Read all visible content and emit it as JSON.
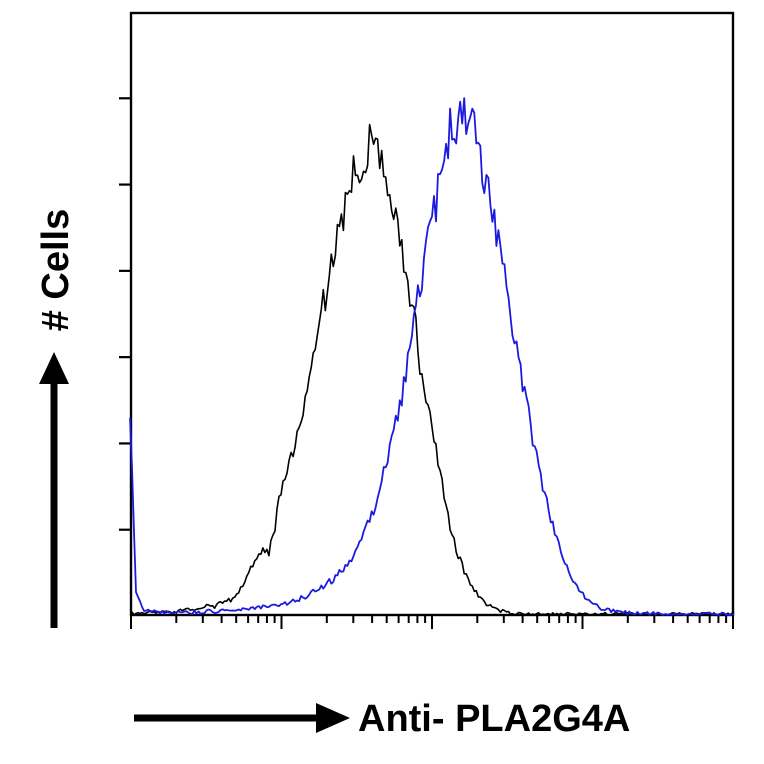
{
  "colors": {
    "background": "#ffffff",
    "axis": "#000000",
    "black_curve": "#000000",
    "blue_curve": "#1b1be0"
  },
  "chart_data": {
    "type": "line",
    "subtype": "flow-cytometry-histogram-overlay",
    "title": "",
    "xlabel": "Anti- PLA2G4A",
    "ylabel": "# Cells",
    "grid": false,
    "legend": "none",
    "x_axis": {
      "scale": "log",
      "decades": 4,
      "tick_labels": []
    },
    "y_axis": {
      "tick_count": 6,
      "tick_labels": []
    },
    "x_range_normalized": [
      0,
      1
    ],
    "y_range_normalized": [
      0,
      1
    ],
    "series": [
      {
        "name": "black",
        "color": "#000000",
        "stroke_width": 1.6,
        "jitter_seed": 1.7,
        "x_step": 0.01,
        "values": [
          0.004,
          0.005,
          0.004,
          0.005,
          0.006,
          0.005,
          0.007,
          0.006,
          0.008,
          0.009,
          0.012,
          0.01,
          0.014,
          0.017,
          0.015,
          0.022,
          0.028,
          0.026,
          0.04,
          0.052,
          0.08,
          0.095,
          0.115,
          0.105,
          0.15,
          0.21,
          0.235,
          0.27,
          0.33,
          0.355,
          0.43,
          0.47,
          0.515,
          0.545,
          0.615,
          0.66,
          0.7,
          0.745,
          0.715,
          0.775,
          0.8,
          0.765,
          0.74,
          0.7,
          0.66,
          0.615,
          0.55,
          0.495,
          0.42,
          0.36,
          0.3,
          0.255,
          0.2,
          0.15,
          0.11,
          0.082,
          0.06,
          0.044,
          0.03,
          0.02,
          0.014,
          0.01,
          0.007,
          0.005,
          0.004,
          0.004,
          0.003,
          0.003,
          0.003,
          0.003,
          0.003,
          0.003,
          0.003,
          0.003,
          0.003,
          0.003,
          0.003,
          0.003,
          0.003,
          0.003,
          0.003,
          0.003,
          0.003,
          0.003,
          0.003,
          0.003,
          0.003,
          0.003,
          0.003,
          0.003,
          0.003,
          0.003,
          0.003,
          0.003,
          0.003,
          0.003,
          0.003,
          0.003,
          0.003,
          0.003,
          0.003
        ]
      },
      {
        "name": "blue",
        "color": "#1b1be0",
        "stroke_width": 1.8,
        "jitter_seed": 9.3,
        "x_step": 0.01,
        "values": [
          0.34,
          0.04,
          0.012,
          0.008,
          0.007,
          0.006,
          0.006,
          0.005,
          0.006,
          0.005,
          0.006,
          0.007,
          0.006,
          0.008,
          0.007,
          0.009,
          0.008,
          0.01,
          0.01,
          0.012,
          0.012,
          0.014,
          0.015,
          0.016,
          0.018,
          0.02,
          0.022,
          0.025,
          0.028,
          0.032,
          0.038,
          0.042,
          0.05,
          0.056,
          0.064,
          0.075,
          0.088,
          0.1,
          0.12,
          0.14,
          0.168,
          0.2,
          0.238,
          0.272,
          0.32,
          0.368,
          0.42,
          0.478,
          0.54,
          0.6,
          0.655,
          0.7,
          0.76,
          0.8,
          0.778,
          0.84,
          0.82,
          0.798,
          0.76,
          0.72,
          0.675,
          0.62,
          0.56,
          0.5,
          0.44,
          0.382,
          0.33,
          0.278,
          0.23,
          0.188,
          0.15,
          0.118,
          0.09,
          0.068,
          0.05,
          0.036,
          0.026,
          0.018,
          0.013,
          0.01,
          0.008,
          0.007,
          0.006,
          0.005,
          0.005,
          0.004,
          0.004,
          0.004,
          0.004,
          0.003,
          0.004,
          0.003,
          0.003,
          0.004,
          0.003,
          0.003,
          0.003,
          0.003,
          0.003,
          0.003,
          0.003
        ]
      }
    ]
  }
}
